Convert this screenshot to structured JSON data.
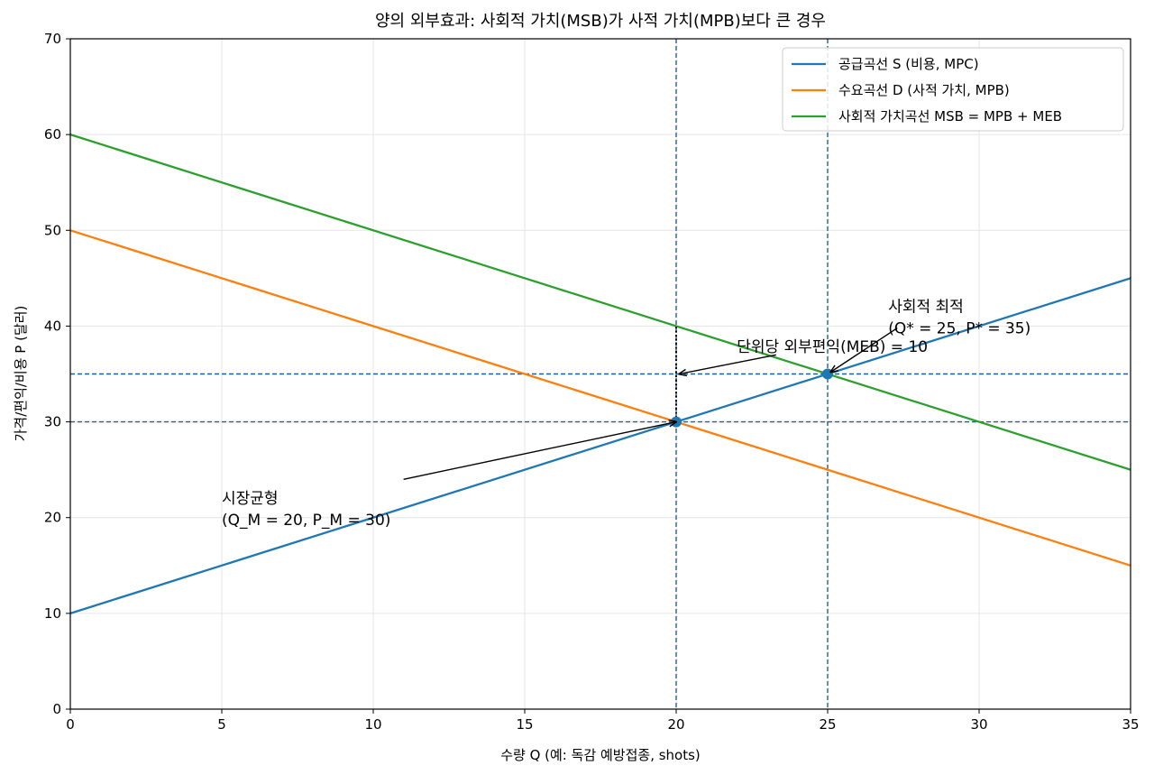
{
  "chart_data": {
    "type": "line",
    "title": "양의 외부효과: 사회적 가치(MSB)가 사적 가치(MPB)보다 큰 경우",
    "xlabel": "수량 Q (예: 독감 예방접종, shots)",
    "ylabel": "가격/편익/비용 P (달러)",
    "xlim": [
      0,
      35
    ],
    "ylim": [
      0,
      70
    ],
    "xticks": [
      0,
      5,
      10,
      15,
      20,
      25,
      30,
      35
    ],
    "yticks": [
      0,
      10,
      20,
      30,
      40,
      50,
      60,
      70
    ],
    "grid": true,
    "legend_position": "top-right",
    "series": [
      {
        "name": "공급곡선 S (비용, MPC)",
        "color": "#1f77b4",
        "x": [
          0,
          35
        ],
        "y": [
          10,
          45
        ]
      },
      {
        "name": "수요곡선 D (사적 가치, MPB)",
        "color": "#ff7f0e",
        "x": [
          0,
          35
        ],
        "y": [
          50,
          15
        ]
      },
      {
        "name": "사회적 가치곡선 MSB = MPB + MEB",
        "color": "#2ca02c",
        "x": [
          0,
          35
        ],
        "y": [
          60,
          25
        ]
      }
    ],
    "reference_lines": [
      {
        "orientation": "vertical",
        "value": 20,
        "color": "#1f5f99"
      },
      {
        "orientation": "vertical",
        "value": 25,
        "color": "#1f5f99"
      },
      {
        "orientation": "horizontal",
        "value": 30,
        "color": "#1f5f99"
      },
      {
        "orientation": "horizontal",
        "value": 35,
        "color": "#1f5f99"
      }
    ],
    "points": [
      {
        "x": 20,
        "y": 30,
        "color": "#1f77b4"
      },
      {
        "x": 25,
        "y": 35,
        "color": "#1f77b4"
      }
    ],
    "meb_segment": {
      "x": 20,
      "y_from": 30,
      "y_to": 40
    },
    "annotations": [
      {
        "lines": [
          "시장균형",
          "(Q_M = 20,  P_M = 30)"
        ],
        "text_x": 5,
        "text_y": 21.5,
        "arrow_from": [
          11,
          24
        ],
        "arrow_to": [
          20,
          30
        ]
      },
      {
        "lines": [
          "단위당 외부편익(MEB) = 10"
        ],
        "text_x": 22,
        "text_y": 37.3,
        "arrow_from": [
          23.3,
          37
        ],
        "arrow_to": [
          20.1,
          35
        ]
      },
      {
        "lines": [
          "사회적 최적",
          "(Q* = 25,  P* = 35)"
        ],
        "text_x": 27,
        "text_y": 41.5,
        "arrow_from": [
          27.3,
          39.8
        ],
        "arrow_to": [
          25.1,
          35.2
        ]
      }
    ]
  }
}
